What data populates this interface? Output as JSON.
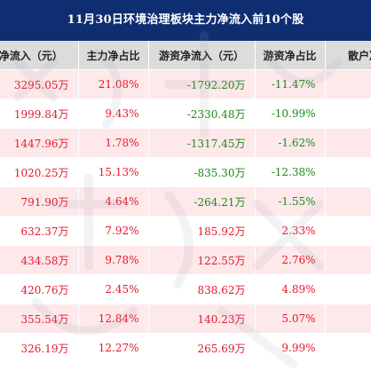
{
  "title": "11月30日环境治理板块主力净流入前10个股",
  "headers": [
    "净流入（元）",
    "主力净占比",
    "游资净流入（元）",
    "游资净占比",
    "散户净"
  ],
  "rows": [
    [
      "3295.05万",
      "21.08%",
      "-1792.20万",
      "-11.47%",
      ""
    ],
    [
      "1999.84万",
      "9.43%",
      "-2330.48万",
      "-10.99%",
      ""
    ],
    [
      "1447.96万",
      "1.78%",
      "-1317.45万",
      "-1.62%",
      ""
    ],
    [
      "1020.25万",
      "15.13%",
      "-835.30万",
      "-12.38%",
      ""
    ],
    [
      "791.90万",
      "4.64%",
      "-264.21万",
      "-1.55%",
      ""
    ],
    [
      "632.37万",
      "7.92%",
      "185.92万",
      "2.33%",
      ""
    ],
    [
      "434.58万",
      "9.78%",
      "122.55万",
      "2.76%",
      ""
    ],
    [
      "420.76万",
      "2.45%",
      "838.62万",
      "4.89%",
      ""
    ],
    [
      "355.54万",
      "12.84%",
      "140.23万",
      "5.07%",
      ""
    ],
    [
      "326.19万",
      "12.27%",
      "265.69万",
      "9.99%",
      ""
    ]
  ],
  "colors": {
    "title_bg": "#0f2e72",
    "header_bg": "#dcdcdc",
    "row_pink": "#fde8ea",
    "positive": "#e6182c",
    "negative": "#1a8a1a"
  }
}
